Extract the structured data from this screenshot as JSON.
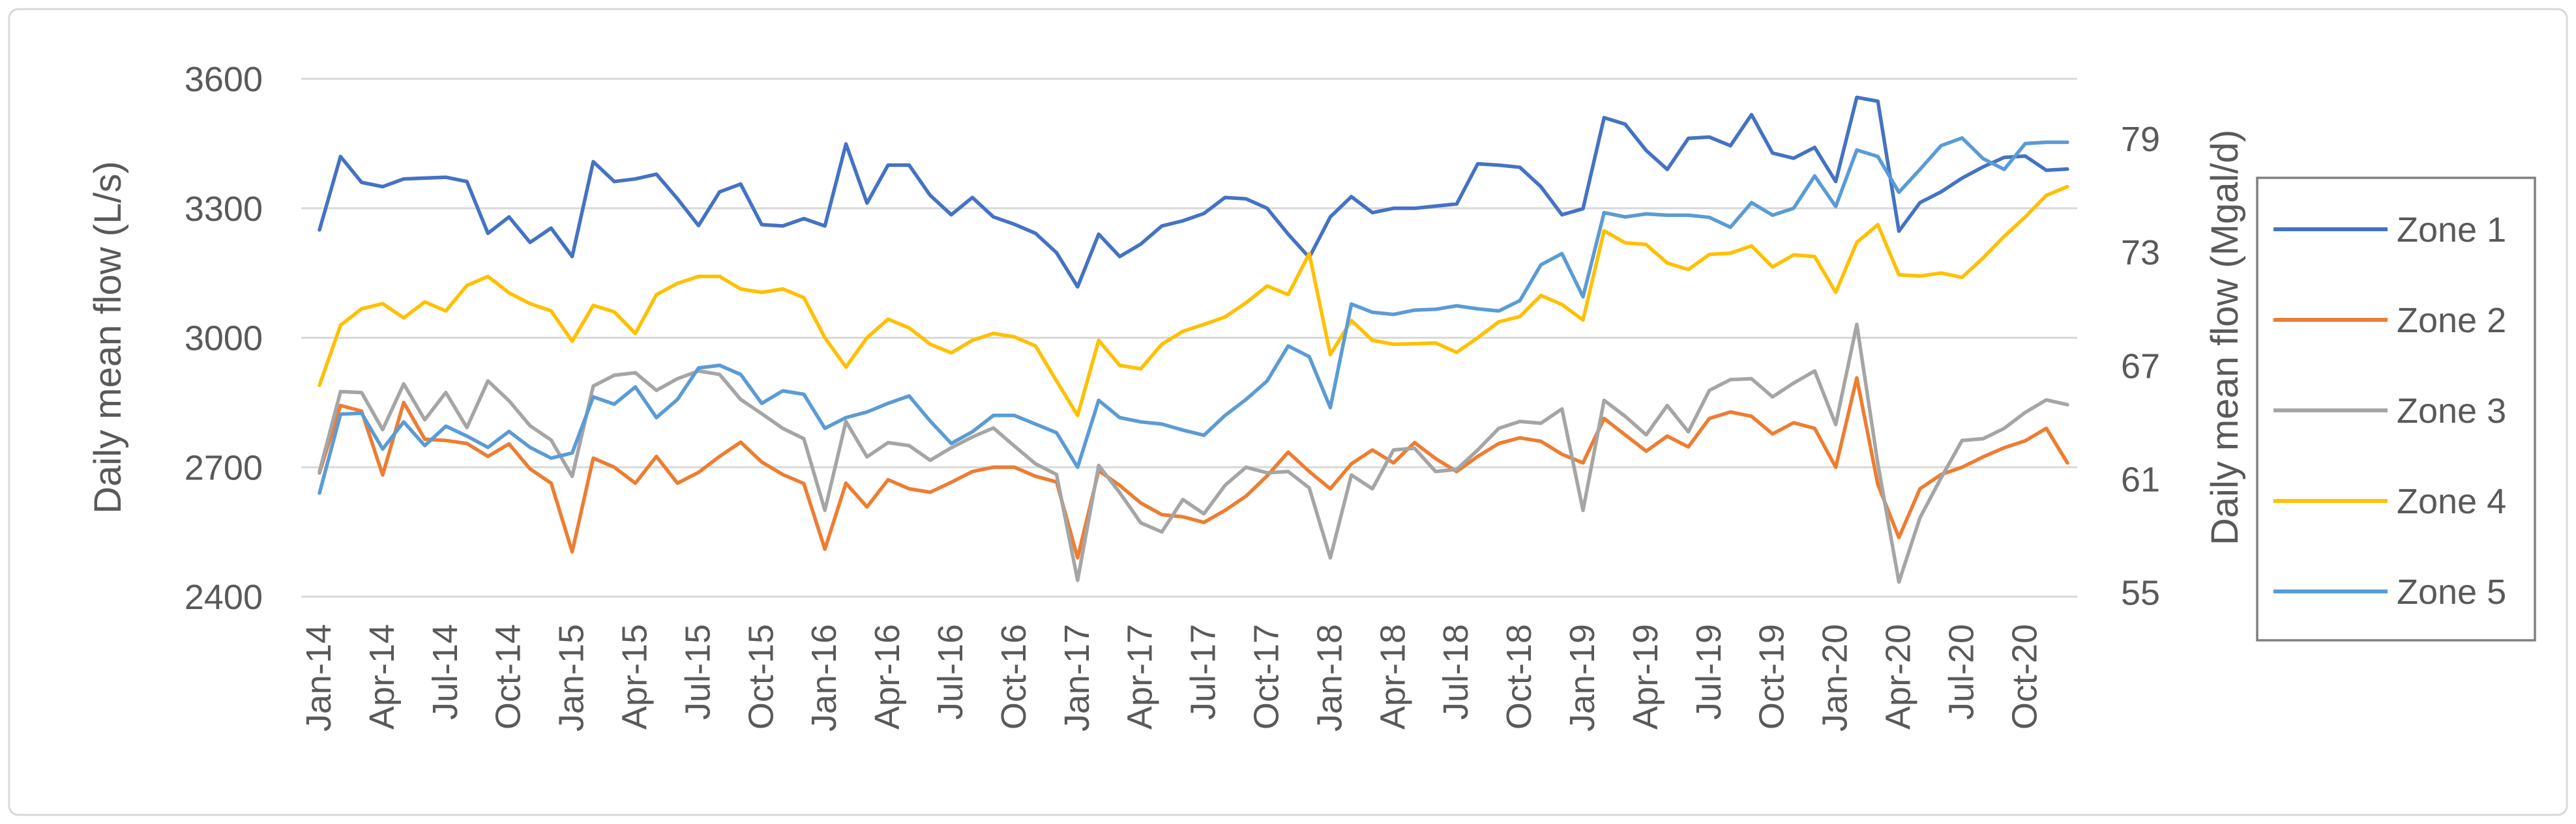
{
  "chart_data": {
    "type": "line",
    "title": "",
    "x_tick_labels": [
      "Jan-14",
      "Apr-14",
      "Jul-14",
      "Oct-14",
      "Jan-15",
      "Apr-15",
      "Jul-15",
      "Oct-15",
      "Jan-16",
      "Apr-16",
      "Jul-16",
      "Oct-16",
      "Jan-17",
      "Apr-17",
      "Jul-17",
      "Oct-17",
      "Jan-18",
      "Apr-18",
      "Jul-18",
      "Oct-18",
      "Jan-19",
      "Apr-19",
      "Jul-19",
      "Oct-19",
      "Jan-20",
      "Apr-20",
      "Jul-20",
      "Oct-20"
    ],
    "months_per_tick": 3,
    "left_axis": {
      "title": "Daily mean flow (L/s)",
      "tick_labels": [
        "3600",
        "3300",
        "3000",
        "2700",
        "2400"
      ],
      "tick_values": [
        3600,
        3300,
        3000,
        2700,
        2400
      ],
      "min": 2400,
      "max": 3600
    },
    "right_axis": {
      "title": "Daily mean flow (Mgal/d)",
      "tick_labels": [
        "79",
        "73",
        "67",
        "61",
        "55"
      ],
      "tick_values": [
        79,
        73,
        67,
        61,
        55
      ]
    },
    "legend_position": "right",
    "grid": true,
    "colors": {
      "gridline": "#D9D9D9",
      "text": "#595959",
      "legend_border": "#808080",
      "frame_border": "#D9D9D9",
      "background": "#FFFFFF"
    },
    "series": [
      {
        "name": "Zone 1",
        "color": "#4472C4",
        "values": [
          3250,
          3420,
          3360,
          3350,
          3368,
          3370,
          3372,
          3362,
          3242,
          3280,
          3221,
          3254,
          3188,
          3408,
          3362,
          3368,
          3379,
          3322,
          3260,
          3338,
          3356,
          3262,
          3259,
          3276,
          3259,
          3449,
          3312,
          3400,
          3400,
          3330,
          3285,
          3325,
          3280,
          3263,
          3242,
          3197,
          3118,
          3240,
          3188,
          3217,
          3259,
          3271,
          3288,
          3325,
          3322,
          3300,
          3240,
          3186,
          3280,
          3327,
          3290,
          3300,
          3300,
          3305,
          3310,
          3403,
          3400,
          3395,
          3350,
          3285,
          3299,
          3510,
          3495,
          3434,
          3390,
          3462,
          3465,
          3445,
          3517,
          3428,
          3416,
          3441,
          3362,
          3557,
          3548,
          3247,
          3313,
          3338,
          3370,
          3396,
          3418,
          3421,
          3388,
          3391
        ]
      },
      {
        "name": "Zone 2",
        "color": "#ED7D31",
        "values": [
          2687,
          2843,
          2830,
          2682,
          2850,
          2765,
          2762,
          2755,
          2725,
          2754,
          2696,
          2663,
          2504,
          2721,
          2700,
          2663,
          2725,
          2663,
          2688,
          2725,
          2758,
          2712,
          2683,
          2662,
          2510,
          2663,
          2608,
          2671,
          2650,
          2642,
          2665,
          2690,
          2700,
          2700,
          2679,
          2666,
          2490,
          2692,
          2658,
          2617,
          2590,
          2585,
          2572,
          2600,
          2633,
          2680,
          2735,
          2690,
          2650,
          2708,
          2740,
          2710,
          2757,
          2720,
          2690,
          2725,
          2755,
          2768,
          2760,
          2730,
          2710,
          2813,
          2775,
          2737,
          2772,
          2747,
          2813,
          2828,
          2818,
          2777,
          2803,
          2790,
          2700,
          2907,
          2660,
          2537,
          2650,
          2683,
          2700,
          2724,
          2745,
          2761,
          2790,
          2710
        ]
      },
      {
        "name": "Zone 3",
        "color": "#A5A5A5",
        "values": [
          2690,
          2875,
          2873,
          2787,
          2893,
          2810,
          2873,
          2792,
          2900,
          2854,
          2796,
          2763,
          2679,
          2888,
          2913,
          2919,
          2878,
          2905,
          2923,
          2915,
          2857,
          2824,
          2790,
          2766,
          2600,
          2806,
          2724,
          2757,
          2750,
          2716,
          2745,
          2770,
          2791,
          2749,
          2708,
          2683,
          2438,
          2704,
          2641,
          2571,
          2550,
          2625,
          2592,
          2658,
          2700,
          2687,
          2690,
          2652,
          2490,
          2682,
          2650,
          2740,
          2744,
          2690,
          2695,
          2740,
          2790,
          2806,
          2802,
          2835,
          2600,
          2855,
          2818,
          2775,
          2843,
          2782,
          2878,
          2903,
          2905,
          2863,
          2895,
          2923,
          2799,
          3031,
          2708,
          2434,
          2583,
          2675,
          2762,
          2766,
          2790,
          2827,
          2856,
          2845
        ]
      },
      {
        "name": "Zone 4",
        "color": "#FFC000",
        "values": [
          2890,
          3029,
          3067,
          3079,
          3046,
          3083,
          3062,
          3121,
          3142,
          3104,
          3079,
          3062,
          2992,
          3075,
          3060,
          3010,
          3100,
          3126,
          3142,
          3142,
          3113,
          3105,
          3113,
          3093,
          3000,
          2932,
          3000,
          3043,
          3023,
          2985,
          2965,
          2994,
          3010,
          3002,
          2981,
          2900,
          2820,
          2994,
          2936,
          2928,
          2985,
          3015,
          3031,
          3048,
          3081,
          3120,
          3100,
          3195,
          2961,
          3040,
          2994,
          2985,
          2986,
          2988,
          2966,
          3000,
          3037,
          3049,
          3098,
          3077,
          3041,
          3248,
          3220,
          3216,
          3173,
          3158,
          3193,
          3196,
          3213,
          3164,
          3192,
          3188,
          3105,
          3221,
          3262,
          3146,
          3143,
          3150,
          3140,
          3185,
          3235,
          3280,
          3330,
          3350
        ]
      },
      {
        "name": "Zone 5",
        "color": "#5B9BD5",
        "values": [
          2640,
          2823,
          2825,
          2742,
          2805,
          2750,
          2795,
          2772,
          2746,
          2783,
          2746,
          2721,
          2733,
          2863,
          2846,
          2886,
          2815,
          2857,
          2930,
          2936,
          2915,
          2848,
          2877,
          2869,
          2790,
          2815,
          2828,
          2848,
          2865,
          2807,
          2755,
          2782,
          2820,
          2820,
          2800,
          2780,
          2700,
          2855,
          2815,
          2805,
          2800,
          2786,
          2774,
          2820,
          2857,
          2900,
          2981,
          2956,
          2838,
          3078,
          3059,
          3054,
          3064,
          3066,
          3074,
          3067,
          3062,
          3086,
          3169,
          3195,
          3095,
          3290,
          3280,
          3287,
          3284,
          3284,
          3279,
          3256,
          3313,
          3284,
          3300,
          3375,
          3304,
          3435,
          3420,
          3337,
          3390,
          3445,
          3463,
          3415,
          3390,
          3450,
          3453,
          3453
        ]
      }
    ]
  }
}
